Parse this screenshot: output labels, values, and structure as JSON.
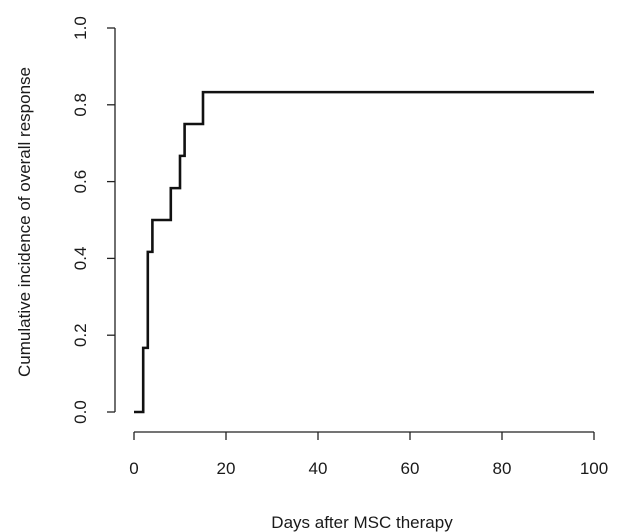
{
  "chart_data": {
    "type": "line",
    "title": "",
    "xlabel": "Days after MSC therapy",
    "ylabel": "Cumulative incidence of overall response",
    "xlim": [
      0,
      100
    ],
    "ylim": [
      0,
      1
    ],
    "x_ticks": [
      0,
      20,
      40,
      60,
      80,
      100
    ],
    "y_ticks": [
      0.0,
      0.2,
      0.4,
      0.6,
      0.8,
      1.0
    ],
    "x_tick_labels": [
      "0",
      "20",
      "40",
      "60",
      "80",
      "100"
    ],
    "y_tick_labels": [
      "0.0",
      "0.2",
      "0.4",
      "0.6",
      "0.8",
      "1.0"
    ],
    "grid": false,
    "legend": "none",
    "step": true,
    "series": [
      {
        "x": [
          0,
          2,
          3,
          4,
          8,
          10,
          11,
          15,
          100
        ],
        "y": [
          0.0,
          0.167,
          0.417,
          0.5,
          0.583,
          0.667,
          0.75,
          0.833,
          0.833
        ]
      }
    ]
  }
}
